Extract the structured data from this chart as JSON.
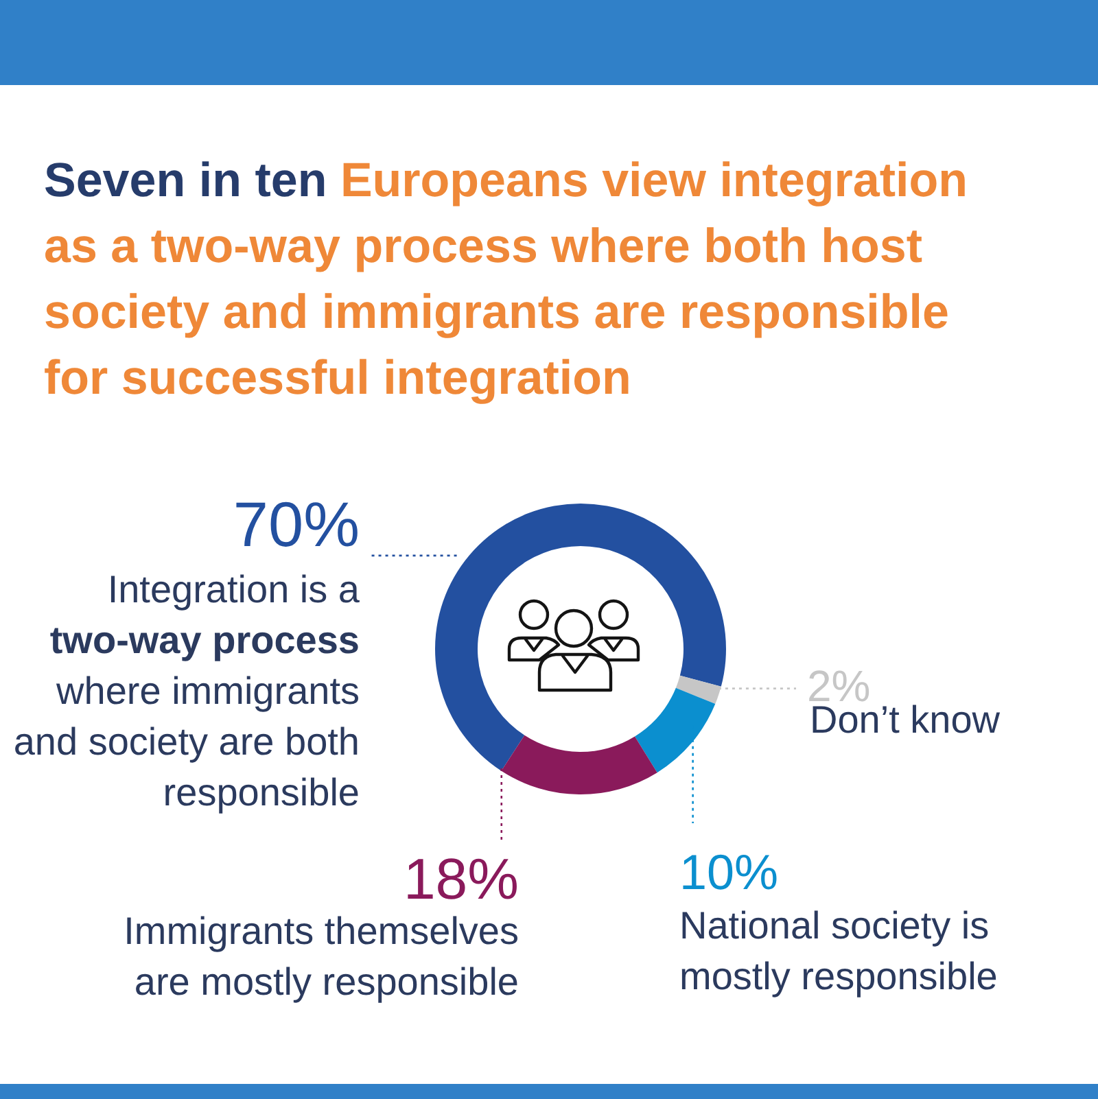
{
  "chart_data": {
    "type": "donut",
    "title": "Seven in ten Europeans view integration as a two-way process where both host society and immigrants are responsible for successful integration",
    "categories": [
      "Integration is a two-way process where immigrants and society are both responsible",
      "Don’t know",
      "National society is mostly responsible",
      "Immigrants themselves are mostly responsible"
    ],
    "values": [
      70,
      2,
      10,
      18
    ],
    "colors": [
      "#2350a0",
      "#c6c6c6",
      "#0b8fcf",
      "#8a1a5b"
    ],
    "value_labels": [
      "70%",
      "2%",
      "10%",
      "18%"
    ]
  }
}
